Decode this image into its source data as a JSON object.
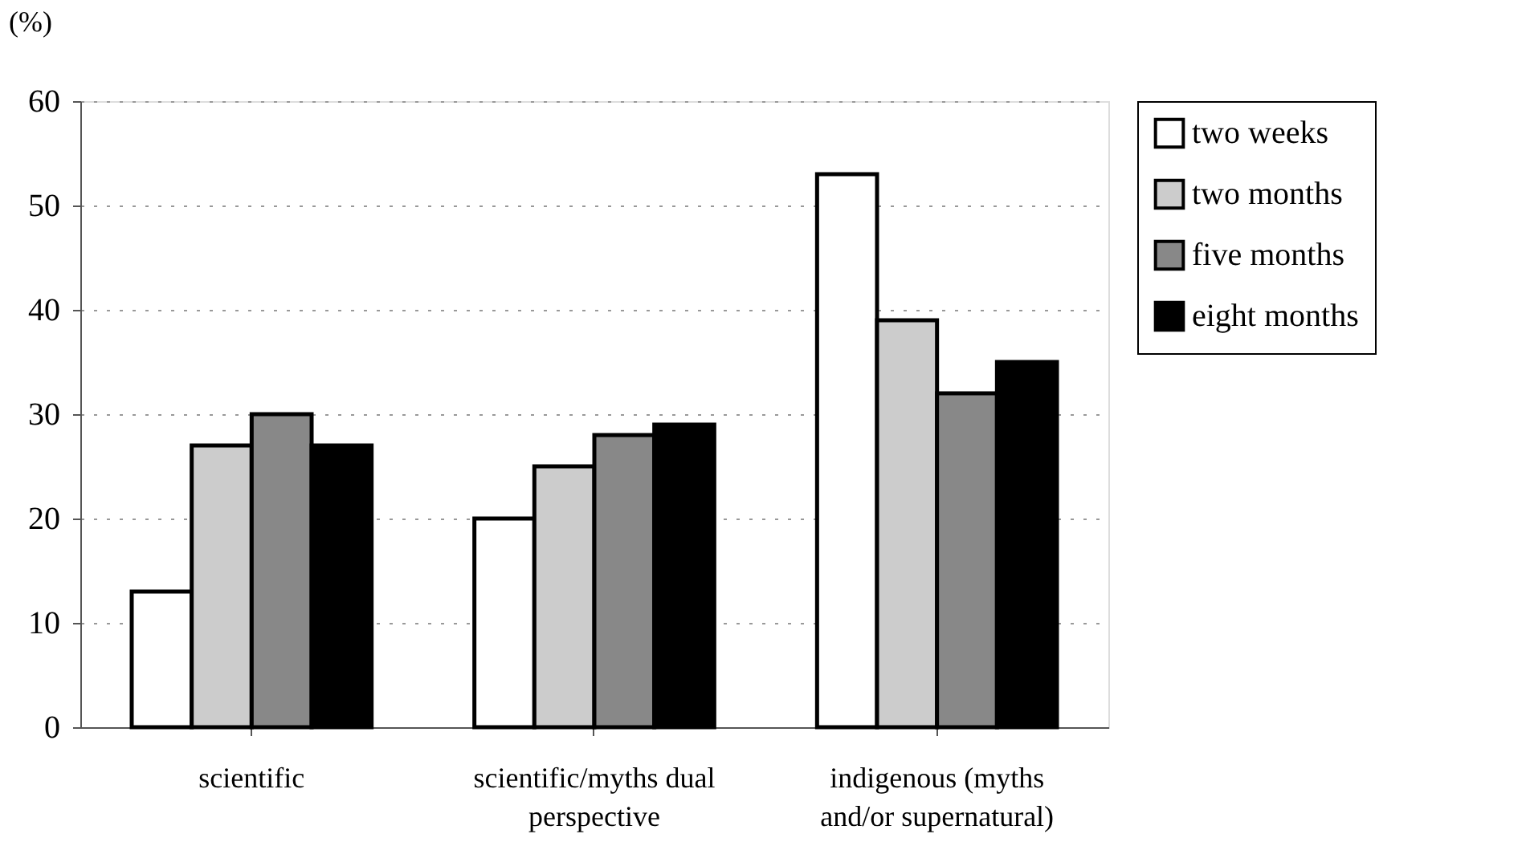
{
  "chart_data": {
    "type": "bar",
    "ylabel": "(%)",
    "categories": [
      "scientific",
      "scientific/myths dual perspective",
      "indigenous (myths and/or supernatural)"
    ],
    "series": [
      {
        "name": "two weeks",
        "color": "#ffffff",
        "values": [
          13,
          20,
          53
        ]
      },
      {
        "name": "two months",
        "color": "#cccccc",
        "values": [
          27,
          25,
          39
        ]
      },
      {
        "name": "five months",
        "color": "#888888",
        "values": [
          30,
          28,
          32
        ]
      },
      {
        "name": "eight months",
        "color": "#000000",
        "values": [
          27,
          29,
          35
        ]
      }
    ],
    "ylim": [
      0,
      60
    ],
    "yticks": [
      0,
      10,
      20,
      30,
      40,
      50,
      60
    ],
    "grid": "y",
    "legend": "right"
  }
}
